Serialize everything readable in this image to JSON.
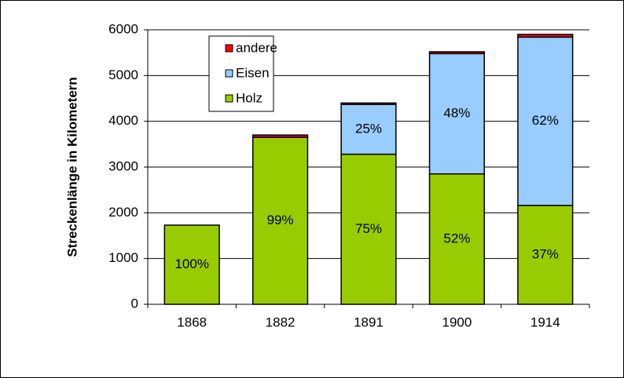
{
  "chart_data": {
    "type": "stacked_bar",
    "y_label": "Streckenlänge in Kilometern",
    "categories": [
      "1868",
      "1882",
      "1891",
      "1900",
      "1914"
    ],
    "series": [
      {
        "name": "Holz",
        "color": "#99cc00",
        "values": [
          1730,
          3650,
          3280,
          2850,
          2160
        ],
        "labels": [
          "100%",
          "99%",
          "75%",
          "52%",
          "37%"
        ]
      },
      {
        "name": "Eisen",
        "color": "#99ccff",
        "values": [
          0,
          0,
          1090,
          2630,
          3680
        ],
        "labels": [
          null,
          null,
          "25%",
          "48%",
          "62%"
        ]
      },
      {
        "name": "andere",
        "color": "#ff0000",
        "values": [
          0,
          50,
          30,
          40,
          60
        ]
      }
    ],
    "ylim": [
      0,
      6000
    ],
    "yticks": [
      0,
      1000,
      2000,
      3000,
      4000,
      5000,
      6000
    ],
    "grid": true
  }
}
